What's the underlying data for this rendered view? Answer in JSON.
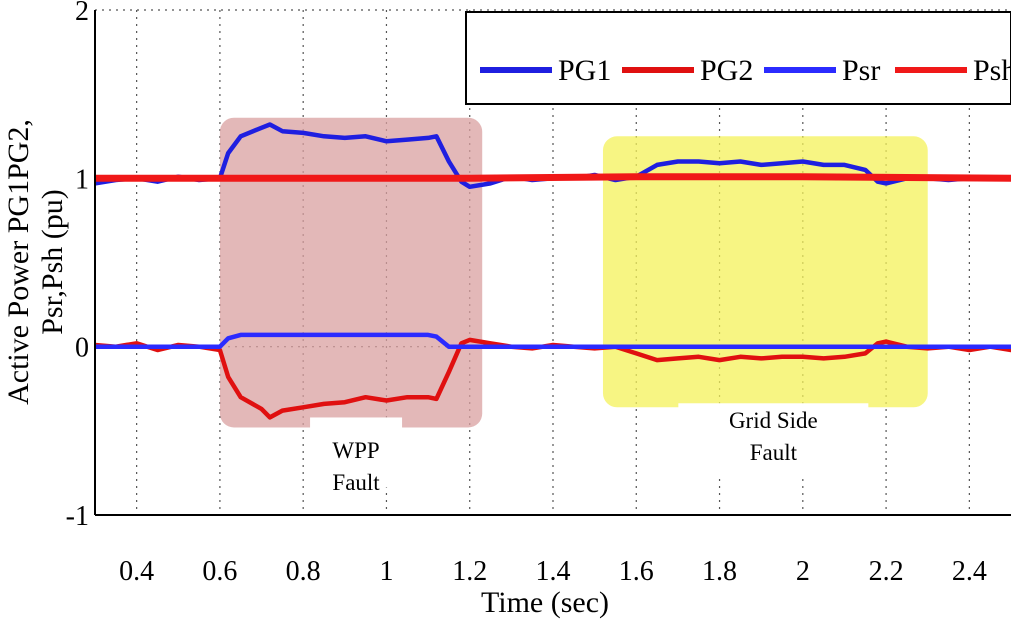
{
  "chart_data": {
    "type": "line",
    "xlabel": "Time (sec)",
    "ylabel_lines": [
      "Active Power PG1PG2,",
      "Psr,Psh (pu)"
    ],
    "xlim": [
      0.3,
      2.5
    ],
    "ylim": [
      -1,
      2
    ],
    "x_ticks": [
      0.4,
      0.6,
      0.8,
      1,
      1.2,
      1.4,
      1.6,
      1.8,
      2,
      2.2,
      2.4
    ],
    "x_tick_labels": [
      "0.4",
      "0.6",
      "0.8",
      "1",
      "1.2",
      "1.4",
      "1.6",
      "1.8",
      "2",
      "2.2",
      "2.4"
    ],
    "y_ticks": [
      -1,
      0,
      1,
      2
    ],
    "y_tick_labels": [
      "-1",
      "0",
      "1",
      "2"
    ],
    "grid": true,
    "legend_position": "top-right",
    "series": [
      {
        "name": "PG1",
        "color": "#1f1fe0",
        "x": [
          0.3,
          0.35,
          0.4,
          0.45,
          0.5,
          0.55,
          0.6,
          0.62,
          0.65,
          0.7,
          0.72,
          0.75,
          0.8,
          0.85,
          0.9,
          0.95,
          1.0,
          1.05,
          1.1,
          1.12,
          1.15,
          1.18,
          1.2,
          1.25,
          1.3,
          1.35,
          1.4,
          1.45,
          1.5,
          1.55,
          1.6,
          1.65,
          1.7,
          1.75,
          1.8,
          1.85,
          1.9,
          1.95,
          2.0,
          2.05,
          2.1,
          2.15,
          2.18,
          2.2,
          2.25,
          2.3,
          2.35,
          2.4,
          2.45,
          2.5
        ],
        "y": [
          0.97,
          0.99,
          1.0,
          0.98,
          1.01,
          0.99,
          1.0,
          1.15,
          1.25,
          1.3,
          1.32,
          1.28,
          1.27,
          1.25,
          1.24,
          1.25,
          1.22,
          1.23,
          1.24,
          1.25,
          1.1,
          0.98,
          0.95,
          0.97,
          1.01,
          0.99,
          1.0,
          1.0,
          1.02,
          0.99,
          1.01,
          1.08,
          1.1,
          1.1,
          1.09,
          1.1,
          1.08,
          1.09,
          1.1,
          1.08,
          1.08,
          1.05,
          0.98,
          0.97,
          1.0,
          1.0,
          0.99,
          1.0,
          1.0,
          1.0
        ]
      },
      {
        "name": "PG2",
        "color": "#e01010",
        "x": [
          0.3,
          0.35,
          0.4,
          0.45,
          0.5,
          0.55,
          0.6,
          0.62,
          0.65,
          0.7,
          0.72,
          0.75,
          0.8,
          0.85,
          0.9,
          0.95,
          1.0,
          1.05,
          1.1,
          1.12,
          1.15,
          1.18,
          1.2,
          1.25,
          1.3,
          1.35,
          1.4,
          1.45,
          1.5,
          1.55,
          1.6,
          1.65,
          1.7,
          1.75,
          1.8,
          1.85,
          1.9,
          1.95,
          2.0,
          2.05,
          2.1,
          2.15,
          2.18,
          2.2,
          2.25,
          2.3,
          2.35,
          2.4,
          2.45,
          2.5
        ],
        "y": [
          0.01,
          0.0,
          0.02,
          -0.02,
          0.01,
          0.0,
          -0.02,
          -0.18,
          -0.3,
          -0.37,
          -0.42,
          -0.38,
          -0.36,
          -0.34,
          -0.33,
          -0.3,
          -0.32,
          -0.3,
          -0.3,
          -0.31,
          -0.15,
          0.02,
          0.04,
          0.02,
          0.0,
          -0.01,
          0.01,
          0.0,
          -0.01,
          0.0,
          -0.04,
          -0.08,
          -0.07,
          -0.06,
          -0.08,
          -0.06,
          -0.07,
          -0.06,
          -0.06,
          -0.07,
          -0.06,
          -0.04,
          0.02,
          0.03,
          0.0,
          -0.01,
          0.0,
          -0.02,
          0.0,
          -0.02
        ]
      },
      {
        "name": "Psr",
        "color": "#2b2bff",
        "x": [
          0.3,
          0.5,
          0.6,
          0.62,
          0.65,
          1.1,
          1.12,
          1.15,
          1.2,
          1.4,
          1.6,
          1.8,
          2.0,
          2.2,
          2.4,
          2.5
        ],
        "y": [
          0.0,
          0.0,
          0.0,
          0.05,
          0.07,
          0.07,
          0.06,
          0.0,
          0.0,
          0.0,
          0.0,
          0.0,
          0.0,
          0.0,
          0.0,
          0.0
        ]
      },
      {
        "name": "Psh",
        "color": "#f01818",
        "x": [
          0.3,
          0.6,
          1.2,
          1.6,
          2.0,
          2.5
        ],
        "y": [
          1.0,
          1.0,
          1.0,
          1.01,
          1.01,
          1.0
        ]
      }
    ],
    "annotations": [
      {
        "lines": [
          "WPP",
          "Fault"
        ],
        "x_range": [
          0.6,
          1.23
        ],
        "y_range": [
          -0.48,
          1.36
        ],
        "fill": "#d9a0a0"
      },
      {
        "lines": [
          "Grid Side",
          "Fault"
        ],
        "x_range": [
          1.52,
          2.3
        ],
        "y_range": [
          -0.36,
          1.25
        ],
        "fill": "#f4f25a"
      }
    ]
  }
}
